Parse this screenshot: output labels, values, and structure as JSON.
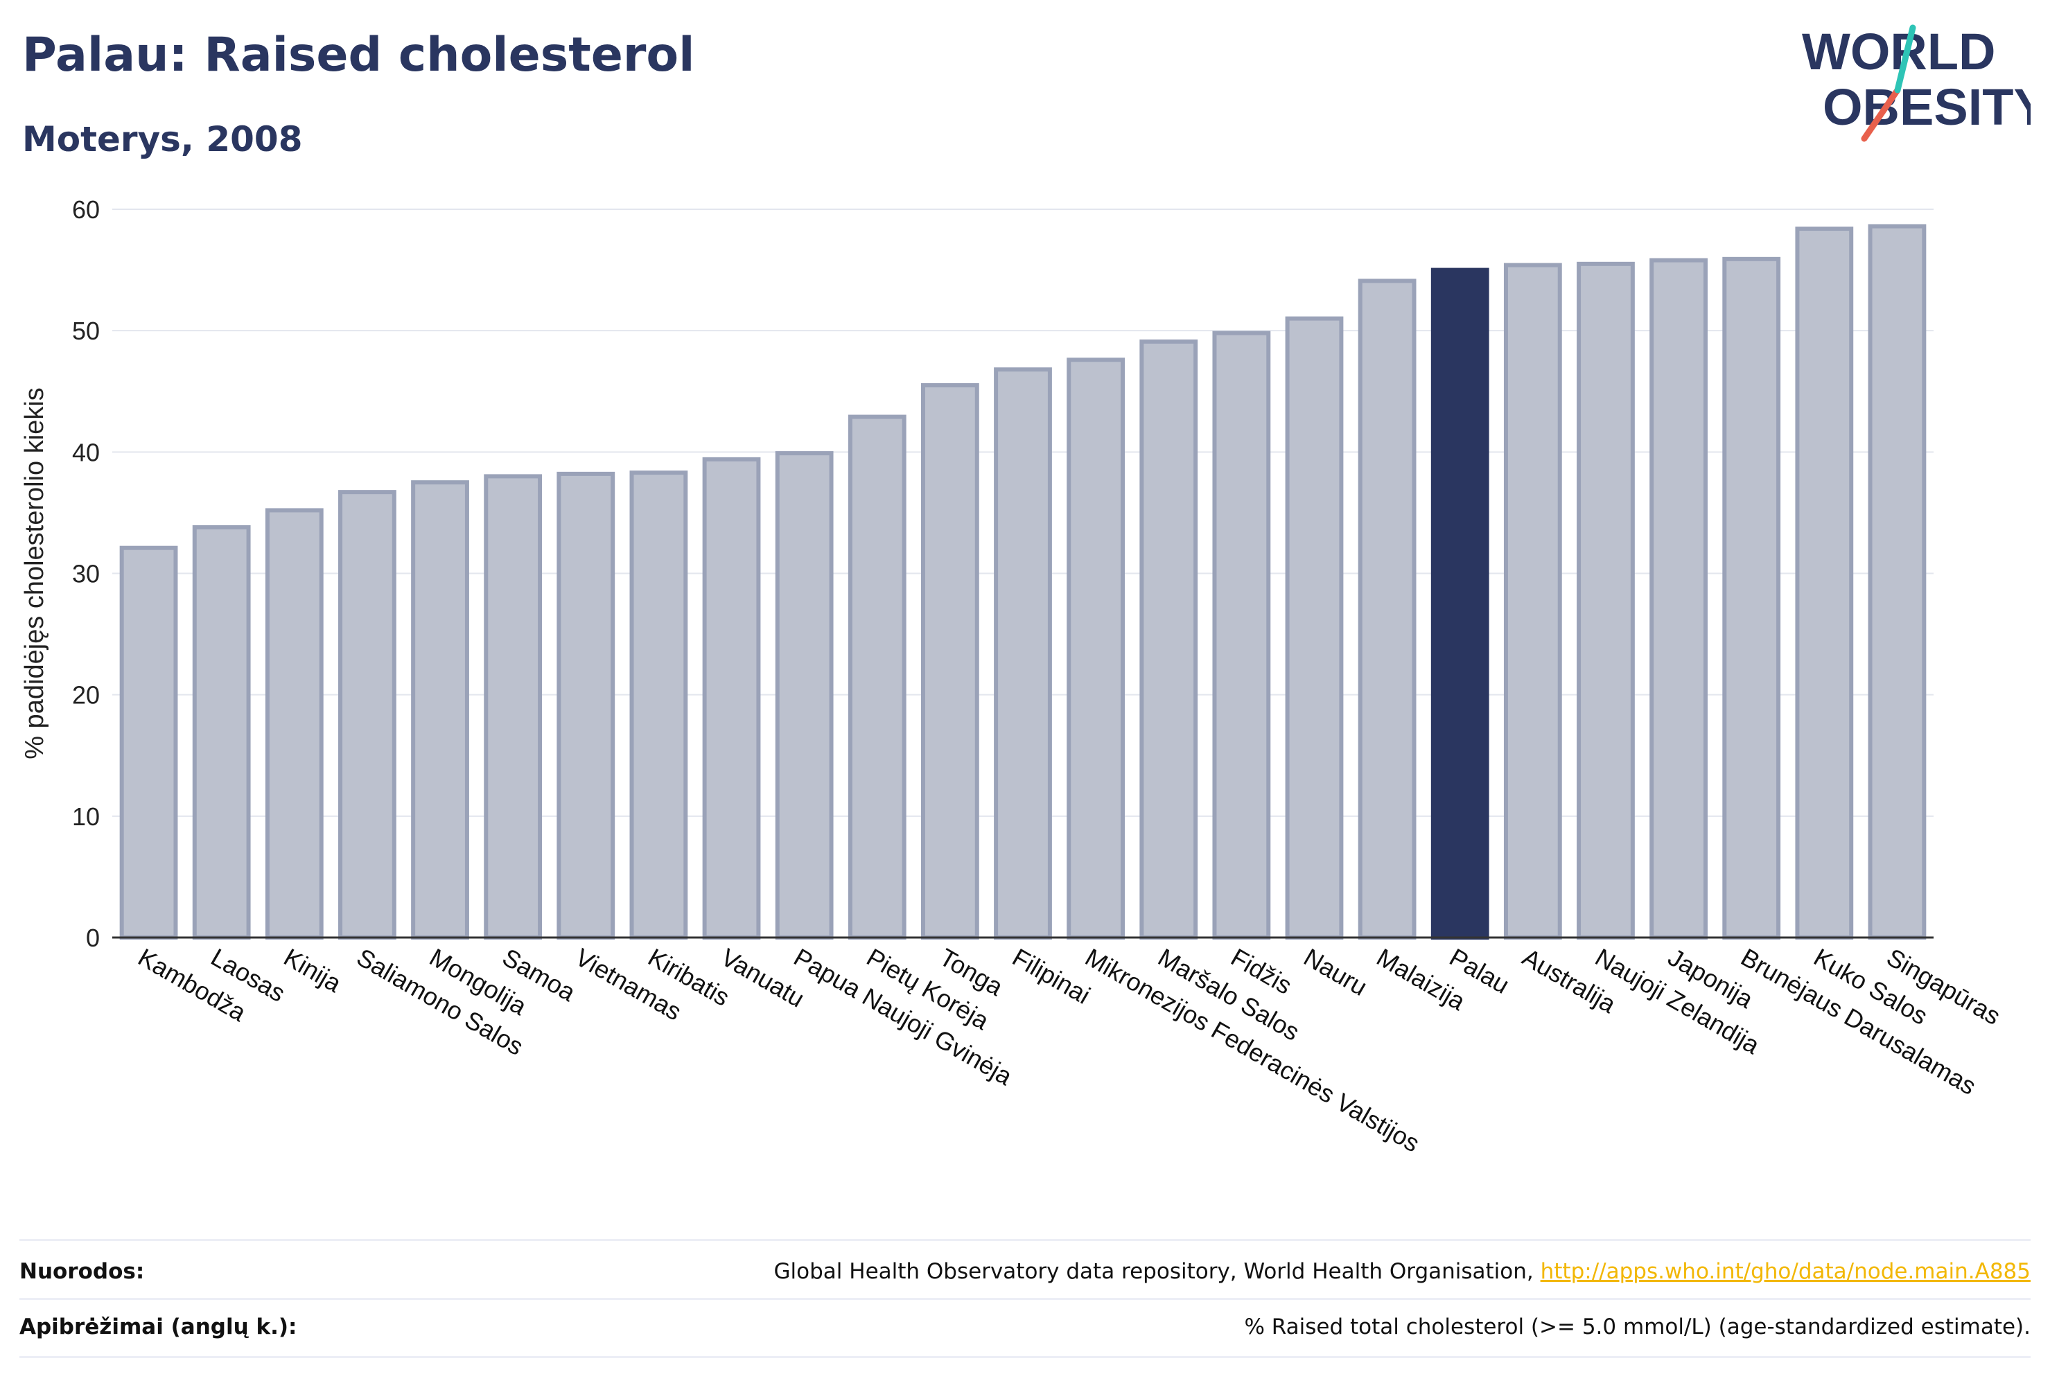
{
  "header": {
    "title": "Palau: Raised cholesterol",
    "subtitle": "Moterys, 2008"
  },
  "logo": {
    "line1": "WORLD",
    "line2": "OBESITY",
    "accent_color": "#e8604c",
    "accent_color_2": "#2ec4b6"
  },
  "chart_data": {
    "type": "bar",
    "title": "Palau: Raised cholesterol",
    "subtitle": "Moterys, 2008",
    "ylabel": "% padidėjęs cholesterolio kiekis",
    "ylim": [
      0,
      60
    ],
    "yticks": [
      0,
      10,
      20,
      30,
      40,
      50,
      60
    ],
    "grid": true,
    "highlight": "Palau",
    "colors": {
      "bar": "#bcc1ce",
      "bar_edge": "#9aa2b8",
      "highlight": "#2a3660"
    },
    "categories": [
      "Kambodža",
      "Laosas",
      "Kinija",
      "Saliamono Salos",
      "Mongolija",
      "Samoa",
      "Vietnamas",
      "Kiribatis",
      "Vanuatu",
      "Papua Naujoji Gvinėja",
      "Pietų Korėja",
      "Tonga",
      "Filipinai",
      "Mikronezijos Federacinės Valstijos",
      "Maršalo Salos",
      "Fidžis",
      "Nauru",
      "Malaizija",
      "Palau",
      "Australija",
      "Naujoji Zelandija",
      "Japonija",
      "Brunėjaus Darusalamas",
      "Kuko Salos",
      "Singapūras"
    ],
    "values": [
      32.1,
      33.8,
      35.2,
      36.7,
      37.5,
      38.0,
      38.2,
      38.3,
      39.4,
      39.9,
      42.9,
      45.5,
      46.8,
      47.6,
      49.1,
      49.8,
      51.0,
      54.1,
      55.0,
      55.4,
      55.5,
      55.8,
      55.9,
      58.4,
      58.6
    ]
  },
  "footer": {
    "references_label": "Nuorodos:",
    "references_text": "Global Health Observatory data repository, World Health Organisation, ",
    "references_link": "http://apps.who.int/gho/data/node.main.A885",
    "definitions_label": "Apibrėžimai (anglų k.):",
    "definitions_text": "% Raised total cholesterol (>= 5.0 mmol/L) (age-standardized estimate)."
  }
}
